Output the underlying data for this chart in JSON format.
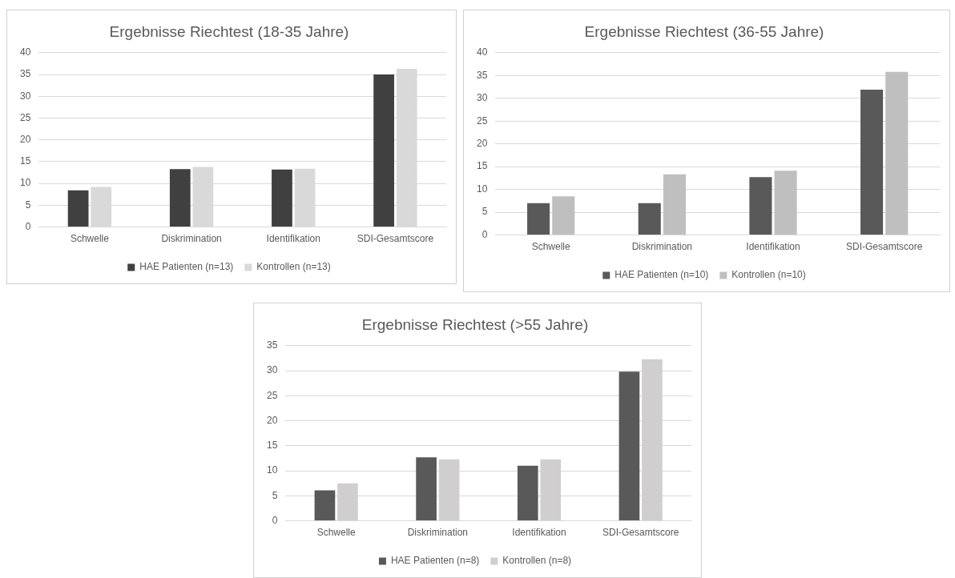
{
  "chart_data": [
    {
      "type": "bar",
      "title": "Ergebnisse Riechtest (18-35 Jahre)",
      "categories": [
        "Schwelle",
        "Diskrimination",
        "Identifikation",
        "SDI-Gesamtscore"
      ],
      "series": [
        {
          "name": "HAE Patienten (n=13)",
          "color": "#404040",
          "values": [
            8.4,
            13.3,
            13.2,
            35.0
          ]
        },
        {
          "name": "Kontrollen (n=13)",
          "color": "#d9d9d9",
          "values": [
            9.2,
            13.8,
            13.4,
            36.3
          ]
        }
      ],
      "ylim": [
        0,
        40
      ],
      "yticks": [
        0,
        5,
        10,
        15,
        20,
        25,
        30,
        35,
        40
      ],
      "grid": "y",
      "legend": "bottom"
    },
    {
      "type": "bar",
      "title": "Ergebnisse Riechtest (36-55 Jahre)",
      "categories": [
        "Schwelle",
        "Diskrimination",
        "Identifikation",
        "SDI-Gesamtscore"
      ],
      "series": [
        {
          "name": "HAE Patienten (n=10)",
          "color": "#595959",
          "values": [
            7.0,
            7.0,
            12.7,
            31.9
          ]
        },
        {
          "name": "Kontrollen (n=10)",
          "color": "#bfbfbf",
          "values": [
            8.5,
            13.3,
            14.1,
            35.8
          ]
        }
      ],
      "ylim": [
        0,
        40
      ],
      "yticks": [
        0,
        5,
        10,
        15,
        20,
        25,
        30,
        35,
        40
      ],
      "grid": "y",
      "legend": "bottom"
    },
    {
      "type": "bar",
      "title": "Ergebnisse Riechtest (>55 Jahre)",
      "categories": [
        "Schwelle",
        "Diskrimination",
        "Identifikation",
        "SDI-Gesamtscore"
      ],
      "series": [
        {
          "name": "HAE Patienten (n=8)",
          "color": "#595959",
          "values": [
            6.1,
            12.7,
            11.0,
            29.8
          ]
        },
        {
          "name": "Kontrollen (n=8)",
          "color": "#d0cece",
          "values": [
            7.5,
            12.3,
            12.3,
            32.3
          ]
        }
      ],
      "ylim": [
        0,
        35
      ],
      "yticks": [
        0,
        5,
        10,
        15,
        20,
        25,
        30,
        35
      ],
      "grid": "y",
      "legend": "bottom"
    }
  ]
}
